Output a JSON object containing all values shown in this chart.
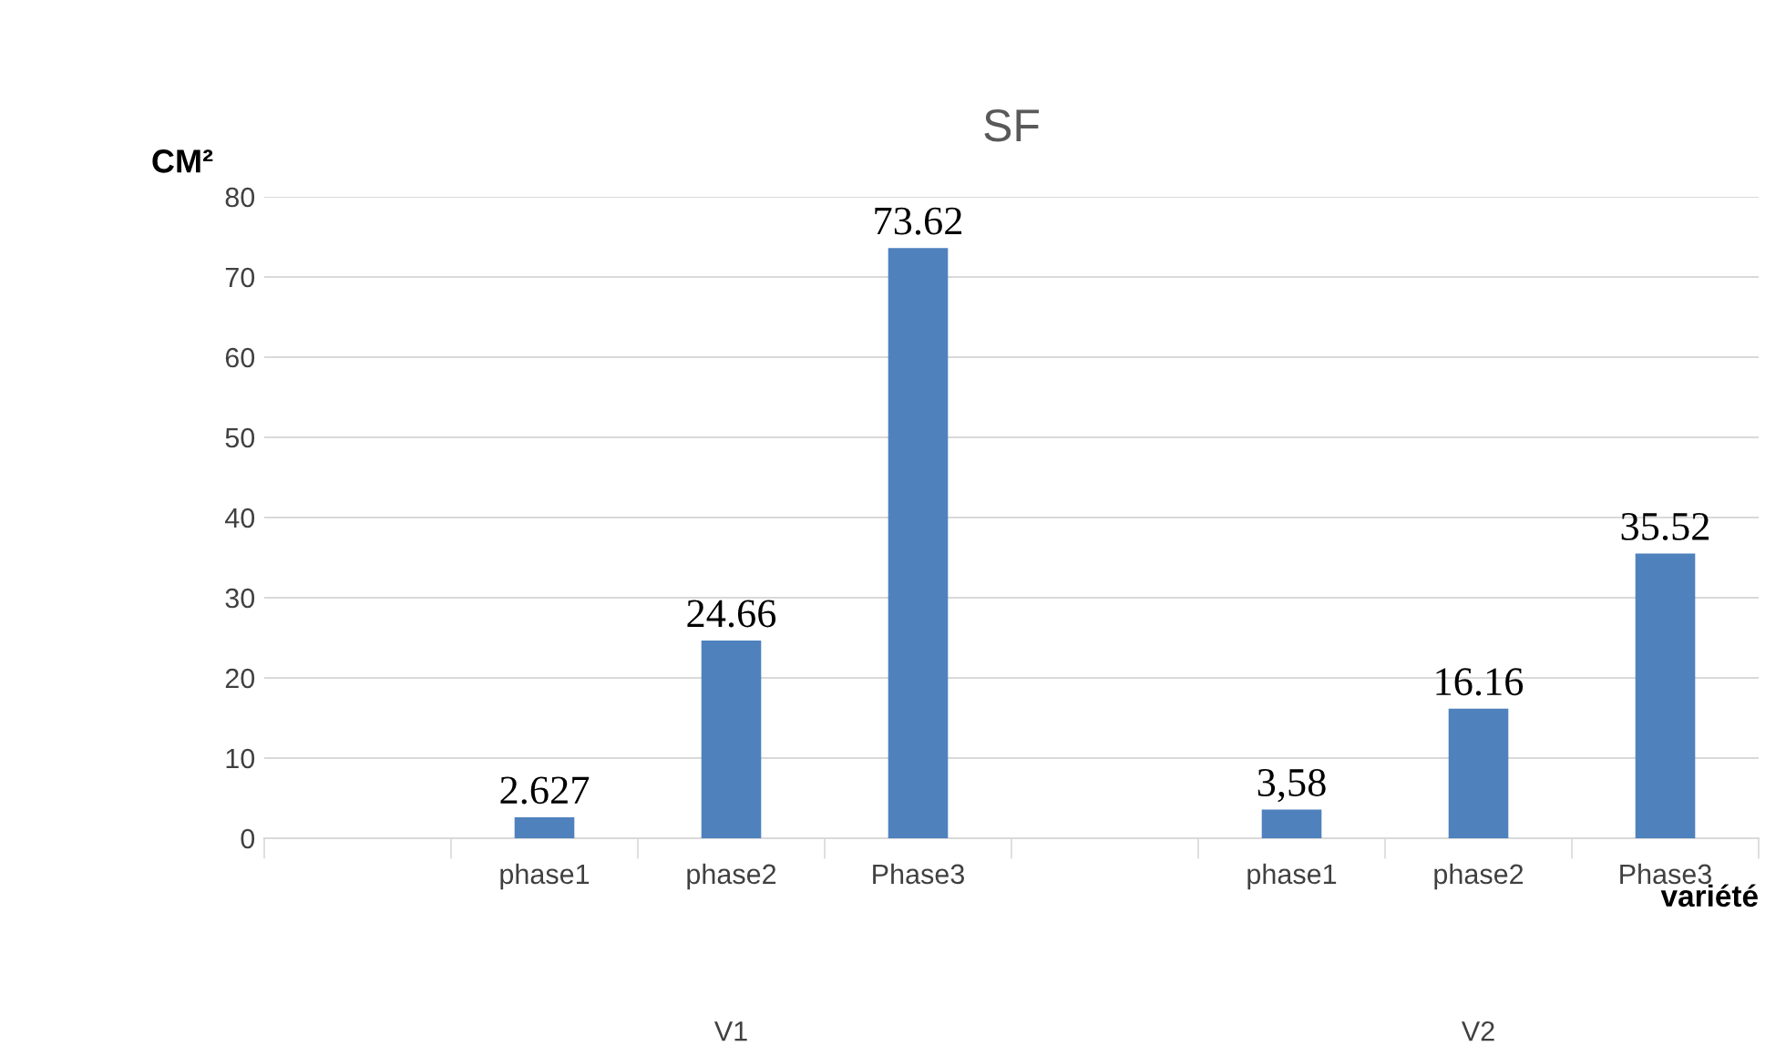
{
  "chart_data": {
    "type": "bar",
    "title": "SF",
    "ylabel": "CM²",
    "xlabel": "variété",
    "categories": [
      null,
      "phase1",
      "phase2",
      "Phase3",
      null,
      "phase1",
      "phase2",
      "Phase3"
    ],
    "values": [
      null,
      2.627,
      24.66,
      73.62,
      null,
      3.58,
      16.16,
      35.52
    ],
    "value_labels": [
      null,
      "2.627",
      "24.66",
      "73.62",
      null,
      "3,58",
      "16.16",
      "35.52"
    ],
    "color": "#4f81bd",
    "ylim": [
      0,
      80
    ],
    "yticks": [
      0,
      10,
      20,
      30,
      40,
      50,
      60,
      70,
      80
    ],
    "grid": "y",
    "legend": false,
    "annotations": [
      "V1",
      "V2"
    ]
  }
}
